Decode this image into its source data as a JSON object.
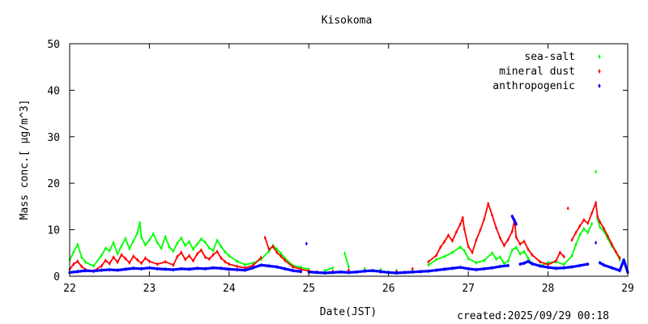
{
  "chart_data": {
    "type": "scatter",
    "title": "Kisokoma",
    "xlabel": "Date(JST)",
    "ylabel": "Mass conc.[ μg/m^3]",
    "xlim": [
      22,
      29
    ],
    "ylim": [
      0,
      50
    ],
    "x_ticks": [
      22,
      23,
      24,
      25,
      26,
      27,
      28,
      29
    ],
    "y_ticks": [
      0,
      10,
      20,
      30,
      40,
      50
    ],
    "legend_position": "top-right",
    "grid": false,
    "series": [
      {
        "name": "sea-salt",
        "color": "#00ff00",
        "points": [
          [
            22.0,
            3.5
          ],
          [
            22.05,
            5.2
          ],
          [
            22.1,
            6.8
          ],
          [
            22.15,
            4.1
          ],
          [
            22.2,
            3.0
          ],
          [
            22.3,
            2.2
          ],
          [
            22.4,
            4.5
          ],
          [
            22.45,
            6.0
          ],
          [
            22.5,
            5.5
          ],
          [
            22.55,
            7.2
          ],
          [
            22.6,
            4.8
          ],
          [
            22.65,
            6.5
          ],
          [
            22.7,
            8.1
          ],
          [
            22.75,
            5.9
          ],
          [
            22.8,
            7.6
          ],
          [
            22.85,
            9.3
          ],
          [
            22.88,
            11.5
          ],
          [
            22.9,
            8.4
          ],
          [
            22.95,
            6.7
          ],
          [
            23.0,
            7.8
          ],
          [
            23.05,
            9.1
          ],
          [
            23.1,
            7.2
          ],
          [
            23.15,
            6.0
          ],
          [
            23.2,
            8.5
          ],
          [
            23.25,
            6.3
          ],
          [
            23.3,
            5.4
          ],
          [
            23.35,
            7.1
          ],
          [
            23.4,
            8.2
          ],
          [
            23.45,
            6.6
          ],
          [
            23.5,
            7.4
          ],
          [
            23.55,
            5.8
          ],
          [
            23.6,
            6.9
          ],
          [
            23.65,
            8.0
          ],
          [
            23.7,
            7.3
          ],
          [
            23.75,
            6.1
          ],
          [
            23.8,
            5.5
          ],
          [
            23.85,
            7.7
          ],
          [
            23.9,
            6.4
          ],
          [
            23.95,
            5.2
          ],
          [
            24.0,
            4.4
          ],
          [
            24.1,
            3.2
          ],
          [
            24.2,
            2.5
          ],
          [
            24.3,
            2.8
          ],
          [
            24.4,
            3.6
          ],
          [
            24.5,
            5.4
          ],
          [
            24.55,
            6.6
          ],
          [
            24.6,
            5.8
          ],
          [
            24.65,
            4.9
          ],
          [
            24.7,
            3.9
          ],
          [
            24.8,
            2.3
          ],
          [
            24.9,
            1.9
          ],
          [
            25.0,
            1.5
          ],
          [
            25.2,
            1.2
          ],
          [
            25.3,
            1.8
          ],
          [
            25.45,
            4.9
          ],
          [
            25.5,
            2.0
          ],
          [
            25.7,
            1.6
          ],
          [
            25.9,
            1.4
          ],
          [
            26.1,
            1.2
          ],
          [
            26.3,
            1.5
          ],
          [
            26.5,
            2.4
          ],
          [
            26.6,
            3.6
          ],
          [
            26.7,
            4.2
          ],
          [
            26.8,
            5.1
          ],
          [
            26.9,
            6.3
          ],
          [
            26.95,
            5.5
          ],
          [
            27.0,
            3.8
          ],
          [
            27.1,
            2.9
          ],
          [
            27.2,
            3.4
          ],
          [
            27.3,
            5.0
          ],
          [
            27.35,
            3.7
          ],
          [
            27.4,
            4.1
          ],
          [
            27.45,
            2.7
          ],
          [
            27.5,
            3.3
          ],
          [
            27.55,
            5.6
          ],
          [
            27.6,
            6.2
          ],
          [
            27.65,
            4.8
          ],
          [
            27.7,
            5.3
          ],
          [
            27.75,
            3.9
          ],
          [
            27.8,
            2.6
          ],
          [
            27.9,
            2.2
          ],
          [
            28.0,
            2.9
          ],
          [
            28.1,
            3.1
          ],
          [
            28.2,
            2.5
          ],
          [
            28.3,
            4.4
          ],
          [
            28.35,
            6.8
          ],
          [
            28.4,
            8.9
          ],
          [
            28.45,
            10.2
          ],
          [
            28.5,
            9.4
          ],
          [
            28.55,
            11.3
          ],
          [
            28.6,
            22.5
          ],
          [
            28.62,
            12.4
          ],
          [
            28.65,
            10.6
          ],
          [
            28.7,
            9.7
          ],
          [
            28.75,
            8.1
          ],
          [
            28.8,
            6.5
          ],
          [
            28.85,
            5.2
          ],
          [
            28.9,
            3.5
          ]
        ]
      },
      {
        "name": "mineral dust",
        "color": "#ff0000",
        "points": [
          [
            22.0,
            1.5
          ],
          [
            22.05,
            2.6
          ],
          [
            22.1,
            3.2
          ],
          [
            22.15,
            2.1
          ],
          [
            22.2,
            1.4
          ],
          [
            22.3,
            1.1
          ],
          [
            22.4,
            2.2
          ],
          [
            22.45,
            3.4
          ],
          [
            22.5,
            2.7
          ],
          [
            22.55,
            4.1
          ],
          [
            22.6,
            3.0
          ],
          [
            22.65,
            4.6
          ],
          [
            22.7,
            3.8
          ],
          [
            22.75,
            2.9
          ],
          [
            22.8,
            4.3
          ],
          [
            22.85,
            3.5
          ],
          [
            22.9,
            2.8
          ],
          [
            22.95,
            3.9
          ],
          [
            23.0,
            3.2
          ],
          [
            23.1,
            2.6
          ],
          [
            23.2,
            3.1
          ],
          [
            23.3,
            2.4
          ],
          [
            23.35,
            4.2
          ],
          [
            23.4,
            5.1
          ],
          [
            23.45,
            3.6
          ],
          [
            23.5,
            4.4
          ],
          [
            23.55,
            3.3
          ],
          [
            23.6,
            4.8
          ],
          [
            23.65,
            5.6
          ],
          [
            23.7,
            4.1
          ],
          [
            23.75,
            3.7
          ],
          [
            23.8,
            4.6
          ],
          [
            23.85,
            5.3
          ],
          [
            23.9,
            3.9
          ],
          [
            23.95,
            3.1
          ],
          [
            24.0,
            2.6
          ],
          [
            24.1,
            2.1
          ],
          [
            24.2,
            1.8
          ],
          [
            24.3,
            2.3
          ],
          [
            24.4,
            4.0
          ],
          [
            24.45,
            8.3
          ],
          [
            24.5,
            5.8
          ],
          [
            24.55,
            6.4
          ],
          [
            24.6,
            5.1
          ],
          [
            24.65,
            4.3
          ],
          [
            24.7,
            3.4
          ],
          [
            24.8,
            2.0
          ],
          [
            24.9,
            1.5
          ],
          [
            25.0,
            1.1
          ],
          [
            25.1,
            0.9
          ],
          [
            25.3,
            1.0
          ],
          [
            25.5,
            1.3
          ],
          [
            25.7,
            1.1
          ],
          [
            25.9,
            0.9
          ],
          [
            26.1,
            1.0
          ],
          [
            26.3,
            1.6
          ],
          [
            26.5,
            3.1
          ],
          [
            26.6,
            4.5
          ],
          [
            26.65,
            6.2
          ],
          [
            26.7,
            7.4
          ],
          [
            26.75,
            8.8
          ],
          [
            26.8,
            7.6
          ],
          [
            26.85,
            9.5
          ],
          [
            26.9,
            11.2
          ],
          [
            26.93,
            12.6
          ],
          [
            26.95,
            10.1
          ],
          [
            27.0,
            6.4
          ],
          [
            27.05,
            5.1
          ],
          [
            27.1,
            7.8
          ],
          [
            27.15,
            9.9
          ],
          [
            27.2,
            12.3
          ],
          [
            27.25,
            15.6
          ],
          [
            27.3,
            13.1
          ],
          [
            27.35,
            10.4
          ],
          [
            27.4,
            8.2
          ],
          [
            27.45,
            6.6
          ],
          [
            27.5,
            7.9
          ],
          [
            27.55,
            9.6
          ],
          [
            27.58,
            12.1
          ],
          [
            27.6,
            8.4
          ],
          [
            27.65,
            6.9
          ],
          [
            27.7,
            7.5
          ],
          [
            27.75,
            5.8
          ],
          [
            27.8,
            4.6
          ],
          [
            27.9,
            3.1
          ],
          [
            28.0,
            2.5
          ],
          [
            28.1,
            3.3
          ],
          [
            28.15,
            5.1
          ],
          [
            28.2,
            4.2
          ],
          [
            28.25,
            14.6
          ],
          [
            28.3,
            7.8
          ],
          [
            28.35,
            9.4
          ],
          [
            28.4,
            10.8
          ],
          [
            28.45,
            12.1
          ],
          [
            28.5,
            11.4
          ],
          [
            28.55,
            13.6
          ],
          [
            28.6,
            15.8
          ],
          [
            28.62,
            12.9
          ],
          [
            28.65,
            11.7
          ],
          [
            28.7,
            10.3
          ],
          [
            28.75,
            8.6
          ],
          [
            28.8,
            6.9
          ],
          [
            28.85,
            5.3
          ],
          [
            28.9,
            3.9
          ]
        ]
      },
      {
        "name": "anthropogenic",
        "color": "#0000ff",
        "points": [
          [
            22.0,
            0.8
          ],
          [
            22.1,
            1.0
          ],
          [
            22.2,
            1.2
          ],
          [
            22.3,
            1.1
          ],
          [
            22.4,
            1.3
          ],
          [
            22.5,
            1.4
          ],
          [
            22.6,
            1.3
          ],
          [
            22.7,
            1.5
          ],
          [
            22.8,
            1.7
          ],
          [
            22.9,
            1.6
          ],
          [
            23.0,
            1.8
          ],
          [
            23.1,
            1.6
          ],
          [
            23.2,
            1.5
          ],
          [
            23.3,
            1.4
          ],
          [
            23.4,
            1.6
          ],
          [
            23.5,
            1.5
          ],
          [
            23.6,
            1.7
          ],
          [
            23.7,
            1.6
          ],
          [
            23.8,
            1.8
          ],
          [
            23.9,
            1.7
          ],
          [
            24.0,
            1.5
          ],
          [
            24.1,
            1.4
          ],
          [
            24.2,
            1.3
          ],
          [
            24.3,
            1.8
          ],
          [
            24.4,
            2.4
          ],
          [
            24.5,
            2.2
          ],
          [
            24.6,
            2.0
          ],
          [
            24.7,
            1.6
          ],
          [
            24.8,
            1.2
          ],
          [
            24.9,
            1.0
          ],
          [
            24.97,
            7.0
          ],
          [
            25.0,
            0.9
          ],
          [
            25.1,
            0.8
          ],
          [
            25.2,
            0.7
          ],
          [
            25.3,
            0.8
          ],
          [
            25.4,
            0.9
          ],
          [
            25.5,
            0.8
          ],
          [
            25.6,
            0.9
          ],
          [
            25.7,
            1.1
          ],
          [
            25.8,
            1.2
          ],
          [
            25.9,
            1.0
          ],
          [
            26.0,
            0.8
          ],
          [
            26.1,
            0.7
          ],
          [
            26.2,
            0.8
          ],
          [
            26.3,
            0.9
          ],
          [
            26.4,
            1.0
          ],
          [
            26.5,
            1.1
          ],
          [
            26.6,
            1.3
          ],
          [
            26.7,
            1.5
          ],
          [
            26.8,
            1.7
          ],
          [
            26.9,
            1.9
          ],
          [
            27.0,
            1.6
          ],
          [
            27.1,
            1.4
          ],
          [
            27.2,
            1.6
          ],
          [
            27.3,
            1.8
          ],
          [
            27.4,
            2.1
          ],
          [
            27.5,
            2.3
          ],
          [
            27.55,
            12.9
          ],
          [
            27.6,
            11.2
          ],
          [
            27.65,
            2.6
          ],
          [
            27.7,
            2.8
          ],
          [
            27.75,
            3.2
          ],
          [
            27.8,
            2.7
          ],
          [
            27.9,
            2.2
          ],
          [
            28.0,
            1.9
          ],
          [
            28.1,
            1.7
          ],
          [
            28.2,
            1.8
          ],
          [
            28.3,
            2.0
          ],
          [
            28.4,
            2.3
          ],
          [
            28.5,
            2.6
          ],
          [
            28.6,
            7.2
          ],
          [
            28.65,
            2.9
          ],
          [
            28.7,
            2.4
          ],
          [
            28.8,
            1.8
          ],
          [
            28.9,
            1.2
          ],
          [
            28.95,
            3.5
          ],
          [
            29.0,
            0.8
          ]
        ]
      }
    ]
  },
  "footer": {
    "created": "created:2025/09/29 00:18"
  }
}
